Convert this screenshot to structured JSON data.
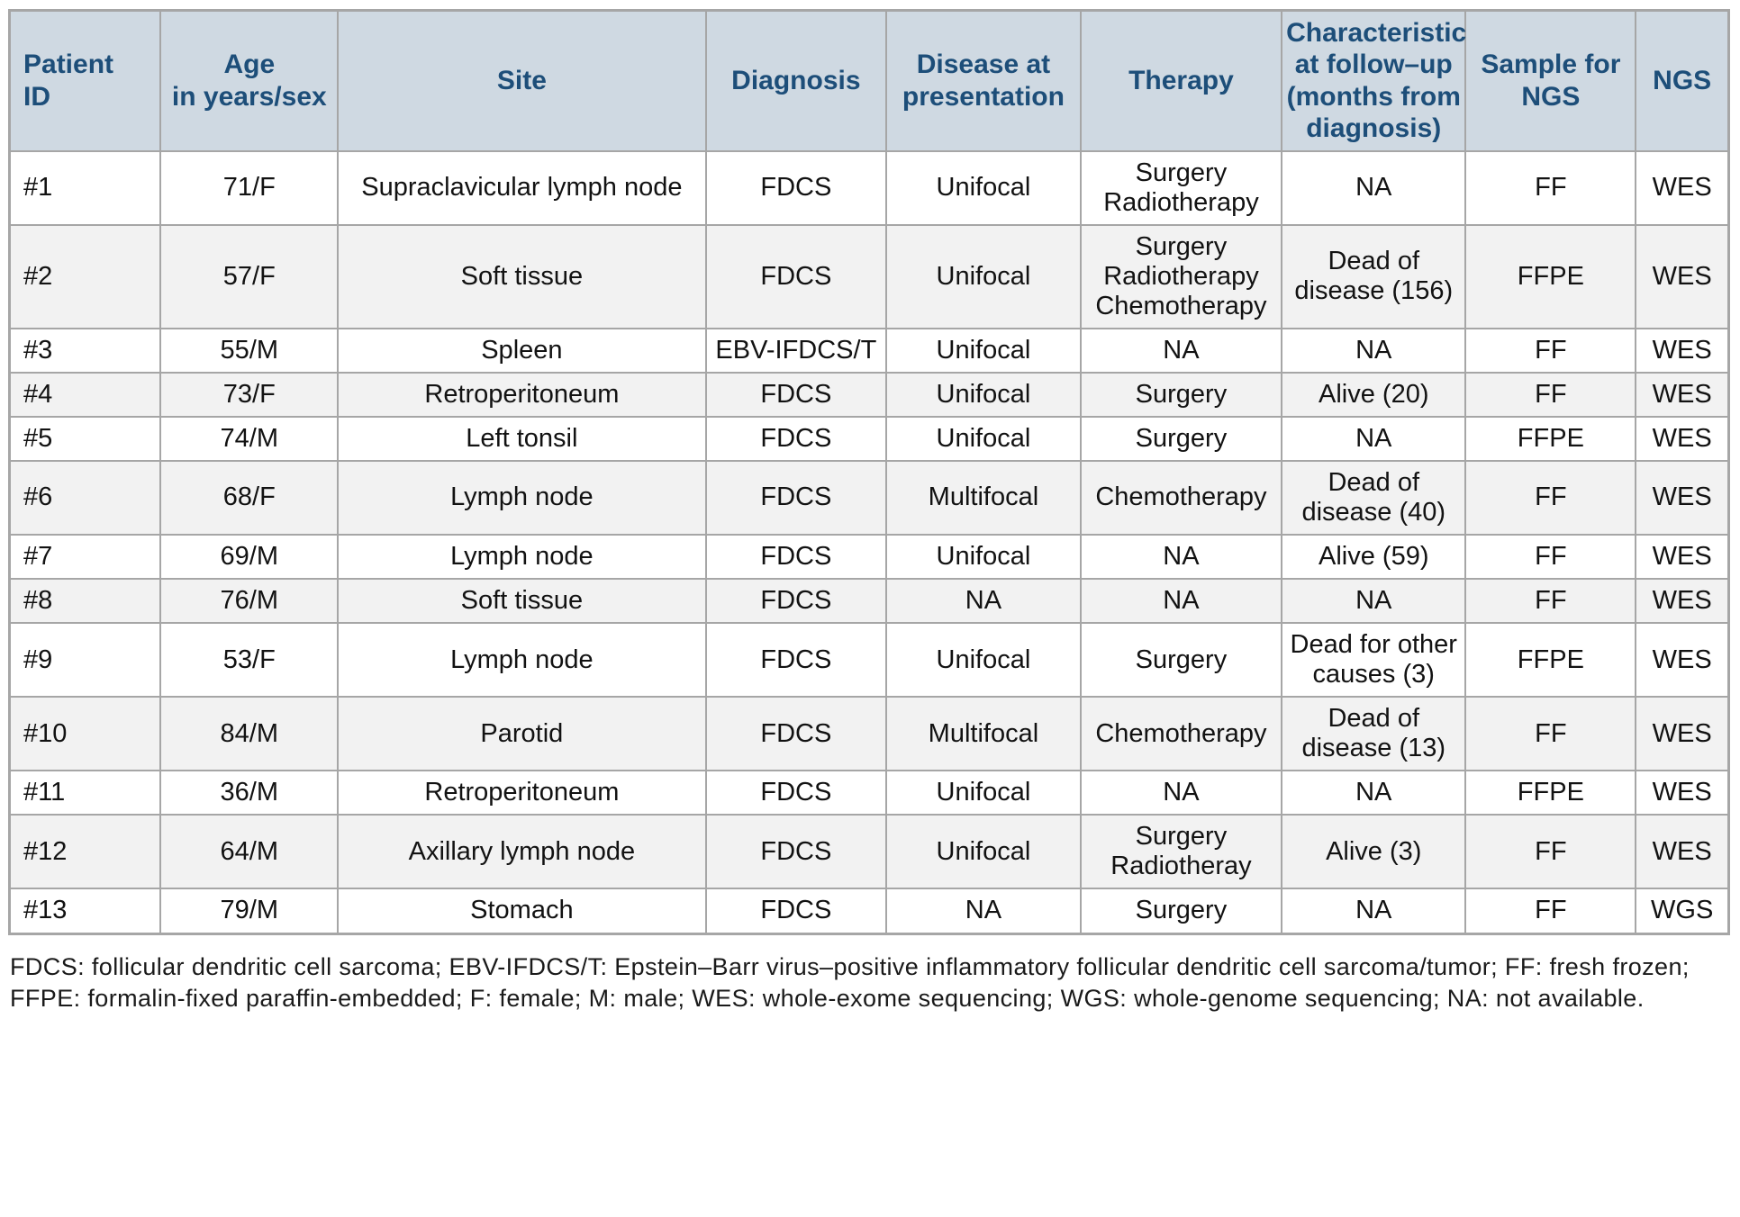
{
  "table": {
    "columns": [
      "Patient\nID",
      "Age\nin years/sex",
      "Site",
      "Diagnosis",
      "Disease at\npresentation",
      "Therapy",
      "Characteristic\nat follow–up\n(months from\ndiagnosis)",
      "Sample for\nNGS",
      "NGS"
    ],
    "column_keys": [
      "patient-id",
      "age-sex",
      "site",
      "diagnosis",
      "disease-at-presentation",
      "therapy",
      "followup-characteristic",
      "sample-for-ngs",
      "ngs"
    ],
    "rows": [
      {
        "cells": [
          "#1",
          "71/F",
          "Supraclavicular lymph node",
          "FDCS",
          "Unifocal",
          "Surgery\nRadiotherapy",
          "NA",
          "FF",
          "WES"
        ]
      },
      {
        "cells": [
          "#2",
          "57/F",
          "Soft tissue",
          "FDCS",
          "Unifocal",
          "Surgery\nRadiotherapy\nChemotherapy",
          "Dead of\ndisease (156)",
          "FFPE",
          "WES"
        ]
      },
      {
        "cells": [
          "#3",
          "55/M",
          "Spleen",
          "EBV-IFDCS/T",
          "Unifocal",
          "NA",
          "NA",
          "FF",
          "WES"
        ]
      },
      {
        "cells": [
          "#4",
          "73/F",
          "Retroperitoneum",
          "FDCS",
          "Unifocal",
          "Surgery",
          "Alive (20)",
          "FF",
          "WES"
        ]
      },
      {
        "cells": [
          "#5",
          "74/M",
          "Left tonsil",
          "FDCS",
          "Unifocal",
          "Surgery",
          "NA",
          "FFPE",
          "WES"
        ]
      },
      {
        "cells": [
          "#6",
          "68/F",
          "Lymph node",
          "FDCS",
          "Multifocal",
          "Chemotherapy",
          "Dead of\ndisease (40)",
          "FF",
          "WES"
        ]
      },
      {
        "cells": [
          "#7",
          "69/M",
          "Lymph node",
          "FDCS",
          "Unifocal",
          "NA",
          "Alive (59)",
          "FF",
          "WES"
        ]
      },
      {
        "cells": [
          "#8",
          "76/M",
          "Soft tissue",
          "FDCS",
          "NA",
          "NA",
          "NA",
          "FF",
          "WES"
        ]
      },
      {
        "cells": [
          "#9",
          "53/F",
          "Lymph node",
          "FDCS",
          "Unifocal",
          "Surgery",
          "Dead for other\ncauses (3)",
          "FFPE",
          "WES"
        ]
      },
      {
        "cells": [
          "#10",
          "84/M",
          "Parotid",
          "FDCS",
          "Multifocal",
          "Chemotherapy",
          "Dead of\ndisease (13)",
          "FF",
          "WES"
        ]
      },
      {
        "cells": [
          "#11",
          "36/M",
          "Retroperitoneum",
          "FDCS",
          "Unifocal",
          "NA",
          "NA",
          "FFPE",
          "WES"
        ]
      },
      {
        "cells": [
          "#12",
          "64/M",
          "Axillary lymph node",
          "FDCS",
          "Unifocal",
          "Surgery\nRadiotheray",
          "Alive (3)",
          "FF",
          "WES"
        ]
      },
      {
        "cells": [
          "#13",
          "79/M",
          "Stomach",
          "FDCS",
          "NA",
          "Surgery",
          "NA",
          "FF",
          "WGS"
        ]
      }
    ]
  },
  "footnote": {
    "text": "FDCS: follicular dendritic cell sarcoma; EBV-IFDCS/T: Epstein–Barr virus–positive inflammatory follicular dendritic cell sarcoma/tumor; FF: fresh frozen; FFPE: formalin-fixed paraffin-embedded; F: female; M: male; WES: whole-exome sequencing; WGS: whole-genome sequencing; NA: not available."
  },
  "colors": {
    "header_bg": "#cfd9e2",
    "header_text": "#1d4e79",
    "row_alt_bg": "#f2f2f2",
    "border": "#a6a6a6",
    "body_text": "#121212"
  }
}
